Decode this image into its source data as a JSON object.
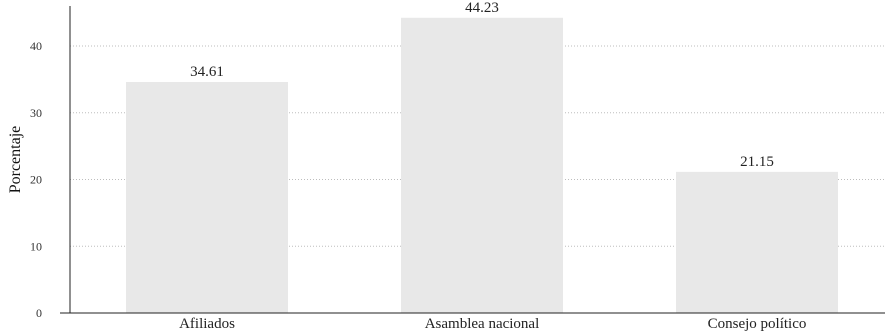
{
  "chart_data": {
    "type": "bar",
    "categories": [
      "Afiliados",
      "Asamblea nacional",
      "Consejo político"
    ],
    "values": [
      34.61,
      44.23,
      21.15
    ],
    "value_labels": [
      "34.61",
      "44.23",
      "21.15"
    ],
    "title": "",
    "xlabel": "",
    "ylabel": "Porcentaje",
    "ylim": [
      0,
      46
    ],
    "yticks": [
      0,
      10,
      20,
      30,
      40
    ],
    "ytick_labels": [
      "0",
      "10",
      "20",
      "30",
      "40"
    ],
    "grid": true,
    "legend": "none",
    "bar_color": "#e8e8e8",
    "grid_color": "#bdbdbd",
    "axis_color": "#222222"
  }
}
